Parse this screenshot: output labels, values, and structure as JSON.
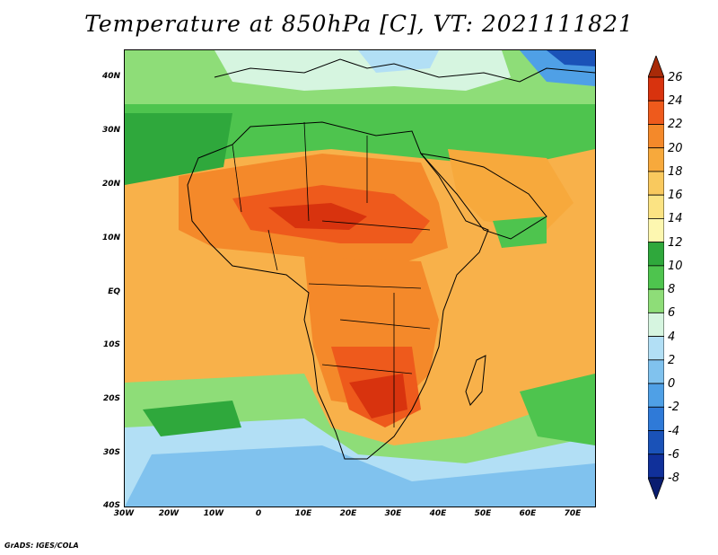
{
  "title": "Temperature at 850hPa [C], VT: 2021111821",
  "footer": "GrADS: IGES/COLA",
  "lat_labels": [
    "40N",
    "30N",
    "20N",
    "10N",
    "EQ",
    "10S",
    "20S",
    "30S",
    "40S"
  ],
  "lon_labels": [
    "30W",
    "20W",
    "10W",
    "0",
    "10E",
    "20E",
    "30E",
    "40E",
    "50E",
    "60E",
    "70E"
  ],
  "colorbar": {
    "labels": [
      "26",
      "24",
      "22",
      "20",
      "18",
      "16",
      "14",
      "12",
      "10",
      "8",
      "6",
      "4",
      "2",
      "0",
      "-2",
      "-4",
      "-6",
      "-8"
    ],
    "colors": [
      "#a82a08",
      "#d8330e",
      "#ee5a1c",
      "#f4892a",
      "#f7a93c",
      "#f9c95e",
      "#fbe383",
      "#fdf7b0",
      "#2fa83c",
      "#4ec44e",
      "#8edd78",
      "#d6f5e0",
      "#b2dff5",
      "#80c2ee",
      "#4fa0e6",
      "#2f7ad8",
      "#1a52b8",
      "#10309a",
      "#0a1d70"
    ]
  }
}
